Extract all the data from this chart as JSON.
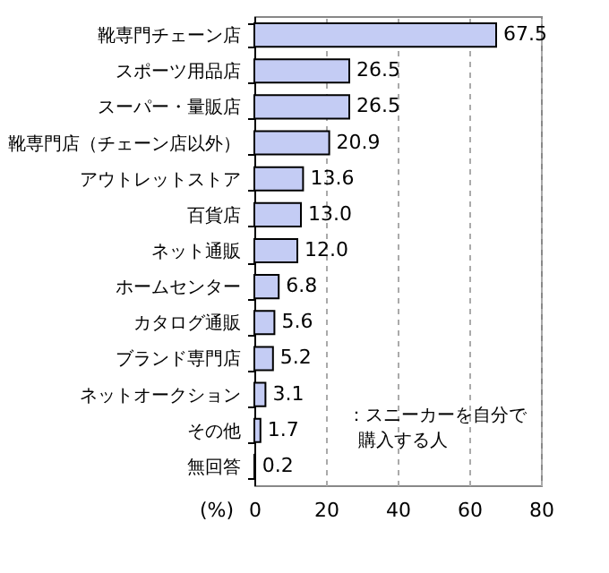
{
  "chart_data": {
    "type": "bar",
    "orientation": "horizontal",
    "categories": [
      "靴専門チェーン店",
      "スポーツ用品店",
      "スーパー・量販店",
      "靴専門店（チェーン店以外）",
      "アウトレットストア",
      "百貨店",
      "ネット通販",
      "ホームセンター",
      "カタログ通販",
      "ブランド専門店",
      "ネットオークション",
      "その他",
      "無回答"
    ],
    "values": [
      67.5,
      26.5,
      26.5,
      20.9,
      13.6,
      13.0,
      12.0,
      6.8,
      5.6,
      5.2,
      3.1,
      1.7,
      0.2
    ],
    "value_labels": [
      "67.5",
      "26.5",
      "26.5",
      "20.9",
      "13.6",
      "13.0",
      "12.0",
      "6.8",
      "5.6",
      "5.2",
      "3.1",
      "1.7",
      "0.2"
    ],
    "color": "#c4ccf4",
    "xlim": [
      0,
      80
    ],
    "xticks": [
      0,
      20,
      40,
      60,
      80
    ],
    "grid": "x",
    "xlabel": "(%)",
    "annotations": [
      "：スニーカーを自分で",
      "購入する人"
    ]
  }
}
